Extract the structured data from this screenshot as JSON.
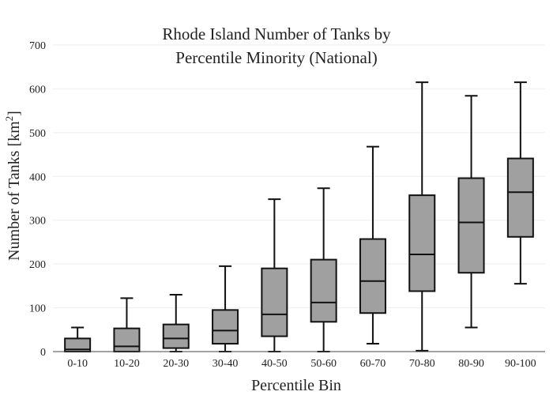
{
  "chart_data": {
    "type": "box",
    "title_lines": [
      "Rhode Island Number of Tanks by",
      "Percentile Minority (National)"
    ],
    "xlabel": "Percentile Bin",
    "ylabel_main": "Number of Tanks  [km",
    "ylabel_sup": "2",
    "ylabel_end": "]",
    "ylim": [
      0,
      700
    ],
    "yticks": [
      0,
      100,
      200,
      300,
      400,
      500,
      600,
      700
    ],
    "grid": true,
    "box_color": "#a0a0a0",
    "line_color": "#111111",
    "categories": [
      "0-10",
      "10-20",
      "20-30",
      "30-40",
      "40-50",
      "50-60",
      "60-70",
      "70-80",
      "80-90",
      "90-100"
    ],
    "boxes": [
      {
        "min": 0,
        "q1": 0,
        "median": 5,
        "q3": 30,
        "max": 55
      },
      {
        "min": 0,
        "q1": 0,
        "median": 12,
        "q3": 53,
        "max": 122
      },
      {
        "min": 0,
        "q1": 8,
        "median": 30,
        "q3": 62,
        "max": 130
      },
      {
        "min": 0,
        "q1": 18,
        "median": 48,
        "q3": 95,
        "max": 195
      },
      {
        "min": 0,
        "q1": 35,
        "median": 85,
        "q3": 190,
        "max": 348
      },
      {
        "min": 0,
        "q1": 68,
        "median": 112,
        "q3": 210,
        "max": 373
      },
      {
        "min": 18,
        "q1": 88,
        "median": 161,
        "q3": 257,
        "max": 468
      },
      {
        "min": 2,
        "q1": 138,
        "median": 222,
        "q3": 357,
        "max": 615
      },
      {
        "min": 55,
        "q1": 180,
        "median": 295,
        "q3": 396,
        "max": 584
      },
      {
        "min": 155,
        "q1": 262,
        "median": 364,
        "q3": 441,
        "max": 615
      }
    ]
  }
}
